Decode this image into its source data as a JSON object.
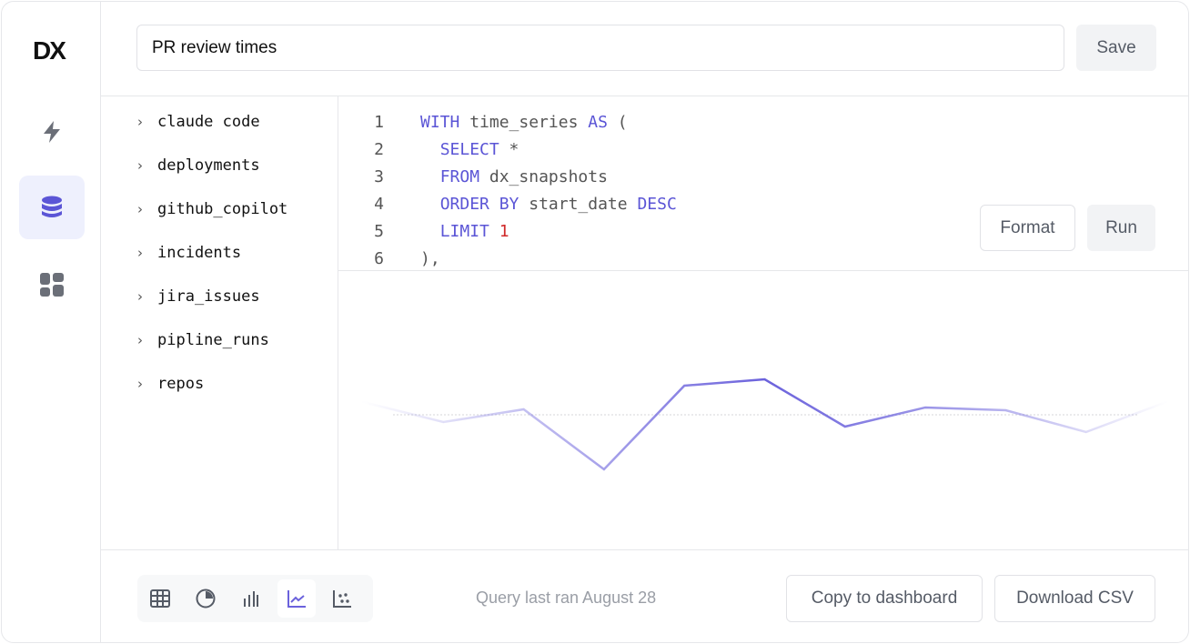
{
  "brand": {
    "logo": "DX"
  },
  "sidebar": {
    "items": [
      {
        "name": "bolt-icon"
      },
      {
        "name": "database-icon",
        "active": true
      },
      {
        "name": "dashboard-icon"
      }
    ]
  },
  "header": {
    "title": "PR review times",
    "save_label": "Save"
  },
  "tree": {
    "items": [
      "claude code",
      "deployments",
      "github_copilot",
      "incidents",
      "jira_issues",
      "pipline_runs",
      "repos"
    ]
  },
  "editor": {
    "format_label": "Format",
    "run_label": "Run",
    "lines": [
      {
        "n": "1",
        "parts": [
          [
            "kw",
            "WITH"
          ],
          [
            "t",
            " time_series "
          ],
          [
            "kw",
            "AS"
          ],
          [
            "t",
            " ("
          ]
        ]
      },
      {
        "n": "2",
        "parts": [
          [
            "t",
            "  "
          ],
          [
            "kw",
            "SELECT"
          ],
          [
            "t",
            " *"
          ]
        ]
      },
      {
        "n": "3",
        "parts": [
          [
            "t",
            "  "
          ],
          [
            "kw",
            "FROM"
          ],
          [
            "t",
            " dx_snapshots"
          ]
        ]
      },
      {
        "n": "4",
        "parts": [
          [
            "t",
            "  "
          ],
          [
            "kw",
            "ORDER BY"
          ],
          [
            "t",
            " start_date "
          ],
          [
            "kw",
            "DESC"
          ]
        ]
      },
      {
        "n": "5",
        "parts": [
          [
            "t",
            "  "
          ],
          [
            "kw",
            "LIMIT"
          ],
          [
            "t",
            " "
          ],
          [
            "num",
            "1"
          ]
        ]
      },
      {
        "n": "6",
        "parts": [
          [
            "t",
            "),"
          ]
        ]
      }
    ]
  },
  "chart_data": {
    "type": "line",
    "x": [
      0,
      1,
      2,
      3,
      4,
      5,
      6,
      7,
      8,
      9,
      10
    ],
    "values": [
      80,
      58,
      72,
      6,
      98,
      105,
      53,
      74,
      71,
      47,
      80
    ],
    "baseline": 70,
    "title": "",
    "xlabel": "",
    "ylabel": "",
    "color": "#6b62dc"
  },
  "footer": {
    "status": "Query last ran August 28",
    "copy_label": "Copy to dashboard",
    "download_label": "Download CSV",
    "chart_types": [
      "table",
      "pie",
      "bar",
      "line",
      "scatter"
    ],
    "active_type": "line"
  }
}
